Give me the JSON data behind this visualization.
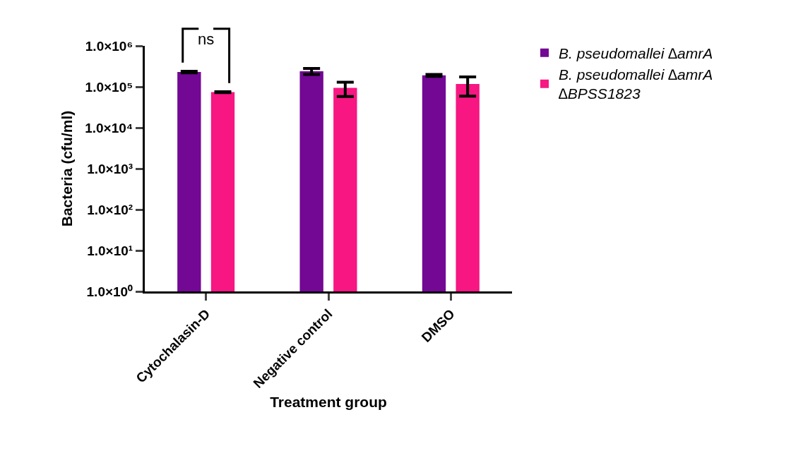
{
  "chart_data": {
    "type": "bar",
    "xlabel": "Treatment group",
    "ylabel": "Bacteria (cfu/ml)",
    "categories": [
      "Cytochalasin-D",
      "Negative control",
      "DMSO"
    ],
    "series": [
      {
        "name": "B. pseudomallei ∆amrA",
        "color": "#730894",
        "values": [
          230000,
          240000,
          190000
        ],
        "errors": [
          10000,
          40000,
          10000
        ]
      },
      {
        "name": "B. pseudomallei ∆amrA\n∆BPSS1823",
        "color": "#f71682",
        "values": [
          74000,
          94000,
          117000
        ],
        "errors": [
          2000,
          36000,
          58000
        ]
      }
    ],
    "log": "y",
    "ylim": [
      1,
      1000000
    ],
    "yticks": [
      {
        "value": 1,
        "label": "1.0×10⁰"
      },
      {
        "value": 10,
        "label": "1.0×10¹"
      },
      {
        "value": 100,
        "label": "1.0×10²"
      },
      {
        "value": 1000,
        "label": "1.0×10³"
      },
      {
        "value": 10000,
        "label": "1.0×10⁴"
      },
      {
        "value": 100000,
        "label": "1.0×10⁵"
      },
      {
        "value": 1000000,
        "label": "1.0×10⁶"
      }
    ],
    "legend": "top right",
    "annotations": [
      "ns"
    ]
  }
}
